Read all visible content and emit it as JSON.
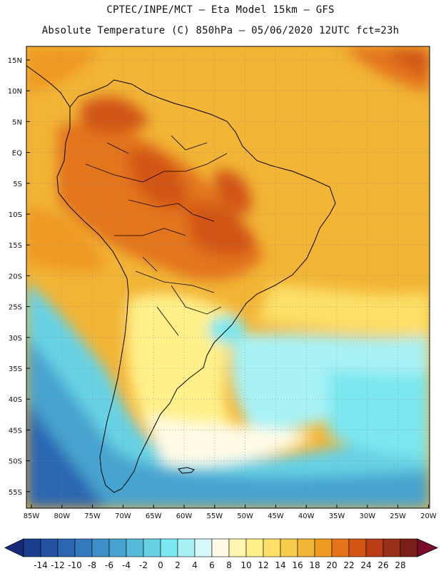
{
  "header": {
    "title_line1": "CPTEC/INPE/MCT –  Eta Model 15km – GFS",
    "title_line2": "Absolute Temperature (C) 850hPa – 05/06/2020 12UTC fct=23h"
  },
  "map": {
    "lat_ticks": [
      "15N",
      "10N",
      "5N",
      "EQ",
      "5S",
      "10S",
      "15S",
      "20S",
      "25S",
      "30S",
      "35S",
      "40S",
      "45S",
      "50S",
      "55S"
    ],
    "lon_ticks": [
      "85W",
      "80W",
      "75W",
      "70W",
      "65W",
      "60W",
      "55W",
      "50W",
      "45W",
      "40W",
      "35W",
      "30W",
      "25W",
      "20W"
    ]
  },
  "colorbar": {
    "labels": [
      "-14",
      "-12",
      "-10",
      "-8",
      "-6",
      "-4",
      "-2",
      "0",
      "2",
      "4",
      "6",
      "8",
      "10",
      "12",
      "14",
      "16",
      "18",
      "20",
      "22",
      "24",
      "26",
      "28"
    ],
    "colors": [
      "#1a3f8f",
      "#2452a0",
      "#2c66b2",
      "#3479be",
      "#3d8fc8",
      "#46a3cf",
      "#55bad8",
      "#68d1e4",
      "#7be7f0",
      "#a8f2f6",
      "#d7f8fa",
      "#fffbe6",
      "#fff5b0",
      "#fff08a",
      "#fce068",
      "#f7cc4e",
      "#f2b536",
      "#ef9a20",
      "#e3741a",
      "#d25516",
      "#b83c14",
      "#983018",
      "#7a2018"
    ],
    "left_arrow_color": "#1a2a7a",
    "right_arrow_color": "#7a0a28"
  }
}
